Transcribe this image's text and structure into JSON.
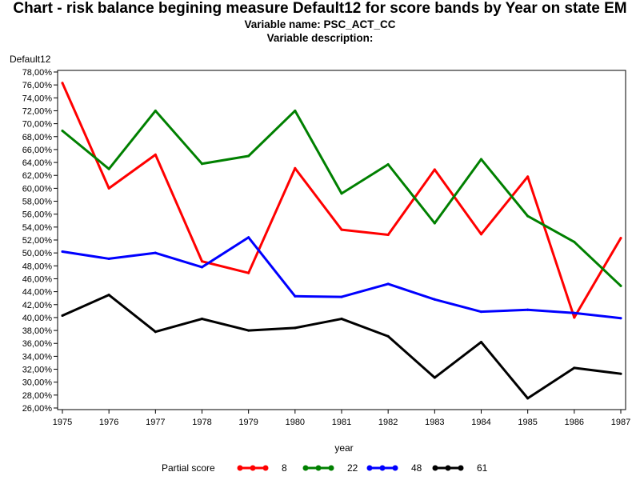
{
  "header": {
    "title": "Chart - risk balance begining measure Default12 for score bands by Year on state EM",
    "variable_name": "Variable name: PSC_ACT_CC",
    "variable_description": "Variable description:"
  },
  "chart_data": {
    "type": "line",
    "title": "Chart - risk balance begining measure Default12 for score bands by Year on state EM",
    "xlabel": "year",
    "ylabel": "Default12",
    "ylim": [
      26,
      78
    ],
    "ytick_step": 2,
    "grid": false,
    "legend_title": "Partial score",
    "legend_position": "bottom",
    "x": [
      1975,
      1976,
      1977,
      1978,
      1979,
      1980,
      1981,
      1982,
      1983,
      1984,
      1985,
      1986,
      1987
    ],
    "series": [
      {
        "name": "8",
        "color": "#ff0000",
        "values": [
          76.3,
          60.0,
          65.2,
          48.7,
          46.9,
          63.1,
          53.6,
          52.8,
          62.9,
          52.9,
          61.8,
          40.0,
          52.3
        ]
      },
      {
        "name": "22",
        "color": "#008000",
        "values": [
          68.9,
          63.0,
          72.0,
          63.8,
          65.0,
          72.0,
          59.2,
          63.7,
          54.6,
          64.5,
          55.7,
          51.7,
          44.9
        ]
      },
      {
        "name": "48",
        "color": "#0000ff",
        "values": [
          50.2,
          49.1,
          50.0,
          47.8,
          52.4,
          43.3,
          43.2,
          45.2,
          42.8,
          40.9,
          41.2,
          40.7,
          39.9
        ]
      },
      {
        "name": "61",
        "color": "#000000",
        "values": [
          40.3,
          43.5,
          37.8,
          39.8,
          38.0,
          38.4,
          39.8,
          37.1,
          30.7,
          36.2,
          27.5,
          32.2,
          31.3
        ]
      }
    ]
  }
}
